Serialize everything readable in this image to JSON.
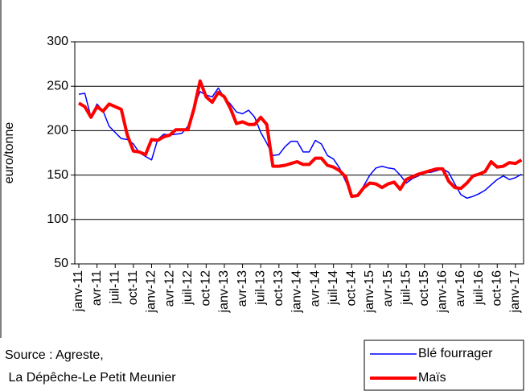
{
  "chart_data": {
    "type": "line",
    "categories": [
      "janv-11",
      null,
      null,
      "avr-11",
      null,
      null,
      "juil-11",
      null,
      null,
      "oct-11",
      null,
      null,
      "janv-12",
      null,
      null,
      "avr-12",
      null,
      null,
      "juil-12",
      null,
      null,
      "oct-12",
      null,
      null,
      "janv-13",
      null,
      null,
      "avr-13",
      null,
      null,
      "juil-13",
      null,
      null,
      "oct-13",
      null,
      null,
      "janv-14",
      null,
      null,
      "avr-14",
      null,
      null,
      "juil-14",
      null,
      null,
      "oct-14",
      null,
      null,
      "janv-15",
      null,
      null,
      "avr-15",
      null,
      null,
      "juil-15",
      null,
      null,
      "oct-15",
      null,
      null,
      "janv-16",
      null,
      null,
      "avr-16",
      null,
      null,
      "juil-16",
      null,
      null,
      "oct-16",
      null,
      null,
      "janv-17",
      null
    ],
    "series": [
      {
        "name": "Blé fourrager",
        "color": "#0000ff",
        "width": 1.5,
        "values": [
          241,
          242,
          215,
          230,
          222,
          205,
          198,
          191,
          190,
          185,
          175,
          171,
          167,
          190,
          196,
          195,
          196,
          197,
          205,
          228,
          244,
          240,
          238,
          248,
          237,
          230,
          221,
          219,
          223,
          215,
          198,
          186,
          172,
          173,
          182,
          188,
          188,
          176,
          176,
          189,
          185,
          172,
          168,
          158,
          143,
          127,
          127,
          138,
          150,
          158,
          160,
          158,
          157,
          150,
          141,
          146,
          149,
          153,
          153,
          155,
          157,
          153,
          140,
          128,
          124,
          126,
          129,
          133,
          139,
          145,
          149,
          145,
          147,
          151
        ]
      },
      {
        "name": "Maïs",
        "color": "#ff0000",
        "width": 4,
        "values": [
          231,
          227,
          215,
          227,
          222,
          230,
          227,
          224,
          195,
          177,
          176,
          173,
          190,
          189,
          193,
          195,
          201,
          201,
          201,
          225,
          256,
          238,
          232,
          243,
          238,
          225,
          208,
          210,
          207,
          207,
          215,
          207,
          160,
          160,
          161,
          163,
          165,
          162,
          162,
          169,
          169,
          161,
          159,
          155,
          148,
          126,
          127,
          136,
          141,
          140,
          136,
          140,
          142,
          134,
          145,
          148,
          151,
          153,
          155,
          157,
          157,
          143,
          136,
          135,
          141,
          149,
          151,
          154,
          165,
          159,
          160,
          164,
          163,
          167
        ]
      }
    ],
    "ylabel": "euro/tonne",
    "ylim": [
      50,
      300
    ],
    "yticks": [
      50,
      100,
      150,
      200,
      250,
      300
    ],
    "grid": true,
    "source": [
      "Source : Agreste,",
      " La Dépêche-Le Petit Meunier"
    ]
  }
}
